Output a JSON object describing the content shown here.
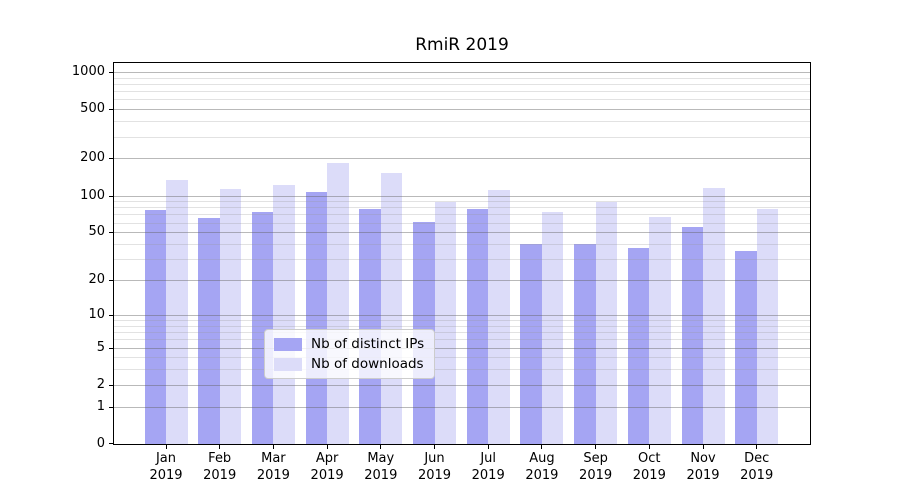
{
  "chart_data": {
    "type": "bar",
    "title": "RmiR 2019",
    "categories": [
      "Jan",
      "Feb",
      "Mar",
      "Apr",
      "May",
      "Jun",
      "Jul",
      "Aug",
      "Sep",
      "Oct",
      "Nov",
      "Dec"
    ],
    "x_sublabel": "2019",
    "series": [
      {
        "name": "Nb of distinct IPs",
        "color": "#a5a5f3",
        "values": [
          76,
          66,
          73,
          107,
          78,
          61,
          77,
          40,
          40,
          37,
          55,
          35
        ]
      },
      {
        "name": "Nb of downloads",
        "color": "#dcdcf9",
        "values": [
          134,
          113,
          121,
          182,
          151,
          89,
          111,
          73,
          89,
          67,
          115,
          77
        ]
      }
    ],
    "yscale": "log1p",
    "ylim": [
      0,
      1200
    ],
    "y_major_ticks": [
      0,
      1,
      2,
      5,
      10,
      20,
      50,
      100,
      200,
      500,
      1000
    ],
    "y_minor_gridlines": [
      3,
      4,
      6,
      7,
      8,
      9,
      30,
      40,
      60,
      70,
      80,
      90,
      300,
      400,
      600,
      700,
      800,
      900
    ],
    "grid": "on",
    "legend_position": "lower center",
    "xlabel": "",
    "ylabel": ""
  },
  "style": {
    "figure_background": "#ffffff",
    "bar_color_distinct_ips": "#a5a5f3",
    "bar_color_downloads": "#dcdcf9",
    "major_gridline_color": "#b9b9b9",
    "minor_gridline_color": "#e5e5e5",
    "spine_color": "#000000"
  }
}
